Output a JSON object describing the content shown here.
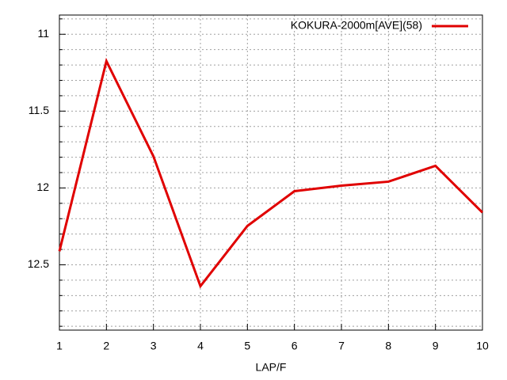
{
  "chart_data": {
    "type": "line",
    "xlabel": "LAP/F",
    "x": [
      1,
      2,
      3,
      4,
      5,
      6,
      7,
      8,
      9,
      10
    ],
    "series": [
      {
        "name": "KOKURA-2000m[AVE](58)",
        "color": "#e00000",
        "values": [
          12.412,
          11.175,
          11.794,
          12.639,
          12.247,
          12.021,
          11.985,
          11.959,
          11.856,
          12.16
        ]
      }
    ],
    "xlim": [
      1,
      10
    ],
    "xticks": [
      1,
      2,
      3,
      4,
      5,
      6,
      7,
      8,
      9,
      10
    ],
    "ylim": [
      12.925,
      10.875
    ],
    "yticks": [
      11,
      11.5,
      12,
      12.5
    ],
    "yminorticks": [
      10.9,
      11.1,
      11.2,
      11.3,
      11.4,
      11.6,
      11.7,
      11.8,
      11.9,
      12.1,
      12.2,
      12.3,
      12.4,
      12.6,
      12.7,
      12.8,
      12.9
    ],
    "grid": true,
    "legend": "top-right"
  }
}
